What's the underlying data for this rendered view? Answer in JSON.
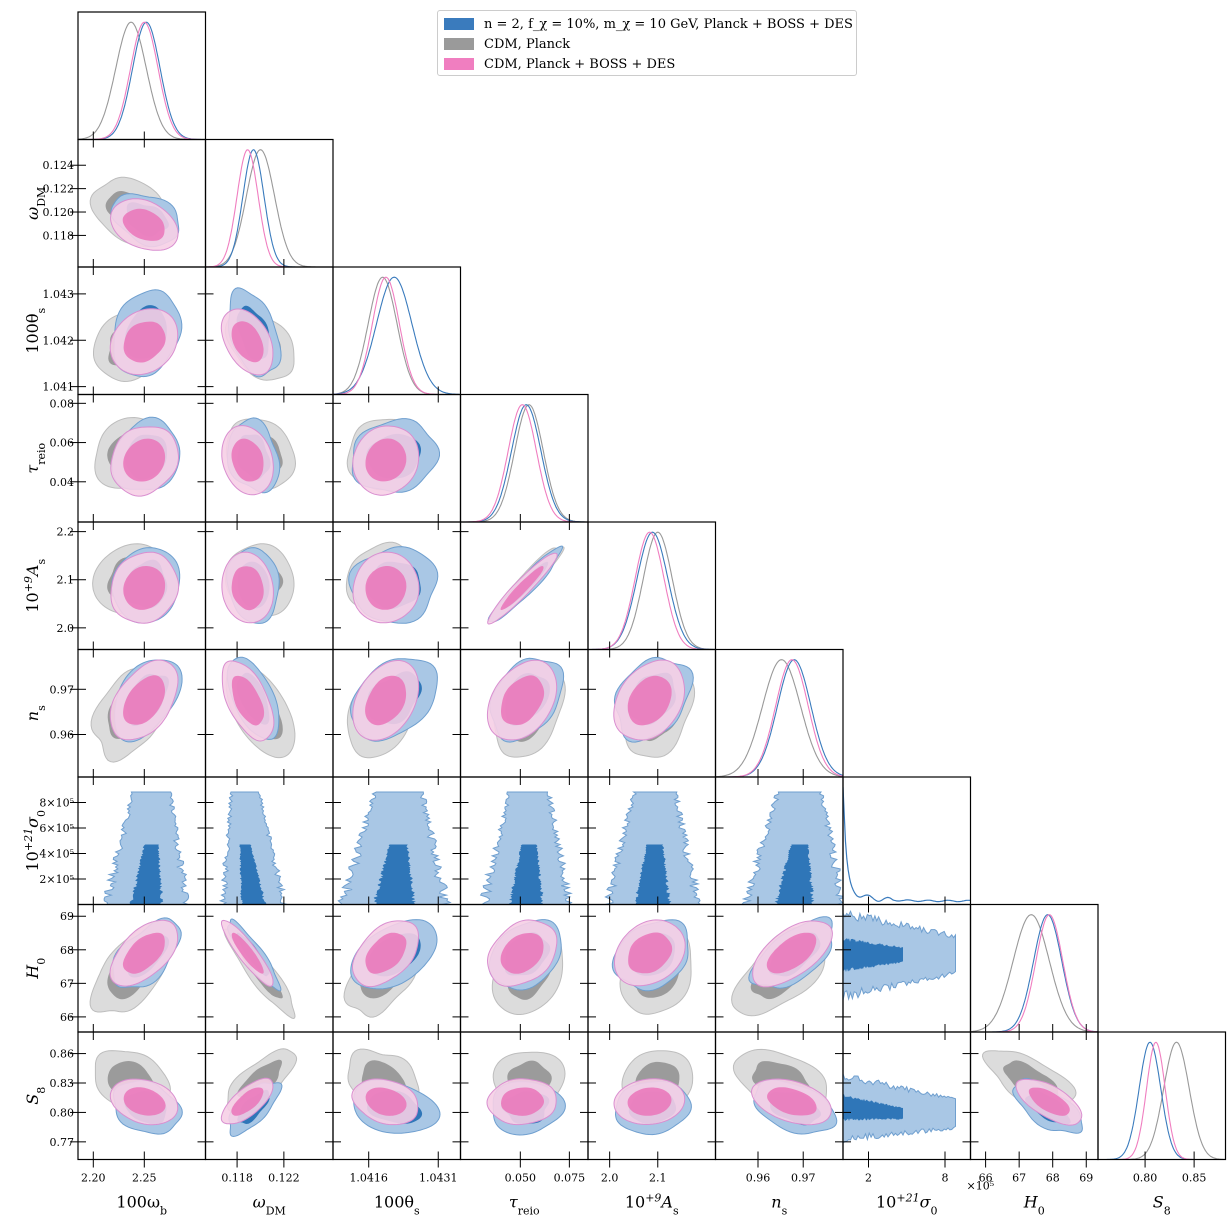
{
  "chart_data": {
    "type": "corner",
    "parameters": [
      {
        "key": "omega_b",
        "label": "100ω",
        "sub": "b",
        "sup": "",
        "ticks": [
          2.2,
          2.25
        ],
        "tick_labels": [
          "2.20",
          "2.25"
        ],
        "range": [
          2.185,
          2.31
        ]
      },
      {
        "key": "omega_dm",
        "label": "ω",
        "sub": "DM",
        "sup": "",
        "ticks": [
          0.118,
          0.122
        ],
        "tick_labels": [
          "0.118",
          "0.122"
        ],
        "range": [
          0.1153,
          0.1262
        ]
      },
      {
        "key": "theta_s",
        "label": "100θ",
        "sub": "s",
        "sup": "",
        "ticks": [
          1.0416,
          1.0431
        ],
        "tick_labels": [
          "1.0416",
          "1.0431"
        ],
        "range": [
          1.04083,
          1.04358
        ]
      },
      {
        "key": "tau_reio",
        "label": "τ",
        "sub": "reio",
        "sup": "",
        "ticks": [
          0.05,
          0.075
        ],
        "tick_labels": [
          "0.050",
          "0.075"
        ],
        "range": [
          0.0195,
          0.0845
        ]
      },
      {
        "key": "As",
        "label": "10",
        "sub": "s",
        "sup": "+9",
        "tail": "A",
        "ticks": [
          2.0,
          2.1
        ],
        "tick_labels": [
          "2.0",
          "2.1"
        ],
        "range": [
          1.955,
          2.22
        ]
      },
      {
        "key": "ns",
        "label": "n",
        "sub": "s",
        "sup": "",
        "ticks": [
          0.96,
          0.97
        ],
        "tick_labels": [
          "0.96",
          "0.97"
        ],
        "range": [
          0.9506,
          0.9788
        ]
      },
      {
        "key": "sigma0",
        "label": "10",
        "sub": "0",
        "sup": "+21",
        "tail": "σ",
        "ticks": [
          200000,
          800000
        ],
        "tick_labels": [
          "2",
          "8"
        ],
        "range": [
          0,
          1000000
        ],
        "offset": "×10⁵"
      },
      {
        "key": "H0",
        "label": "H",
        "sub": "0",
        "sup": "",
        "ticks": [
          66,
          67,
          68,
          69
        ],
        "tick_labels": [
          "66",
          "67",
          "68",
          "69"
        ],
        "range": [
          65.55,
          69.35
        ]
      },
      {
        "key": "S8",
        "label": "S",
        "sub": "8",
        "sup": "",
        "ticks": [
          0.8,
          0.85
        ],
        "tick_labels": [
          "0.80",
          "0.85"
        ],
        "range": [
          0.752,
          0.882
        ]
      }
    ],
    "y_ticks": {
      "omega_dm": {
        "ticks": [
          0.118,
          0.12,
          0.122,
          0.124
        ],
        "labels": [
          "0.118",
          "0.120",
          "0.122",
          "0.124"
        ]
      },
      "theta_s": {
        "ticks": [
          1.041,
          1.042,
          1.043
        ],
        "labels": [
          "1.041",
          "1.042",
          "1.043"
        ]
      },
      "tau_reio": {
        "ticks": [
          0.04,
          0.06,
          0.08
        ],
        "labels": [
          "0.04",
          "0.06",
          "0.08"
        ]
      },
      "As": {
        "ticks": [
          2.0,
          2.1,
          2.2
        ],
        "labels": [
          "2.0",
          "2.1",
          "2.2"
        ]
      },
      "ns": {
        "ticks": [
          0.96,
          0.97
        ],
        "labels": [
          "0.96",
          "0.97"
        ]
      },
      "sigma0": {
        "ticks": [
          200000,
          400000,
          600000,
          800000
        ],
        "labels": [
          "2×10⁵",
          "4×10⁵",
          "6×10⁵",
          "8×10⁵"
        ]
      },
      "H0": {
        "ticks": [
          66,
          67,
          68,
          69
        ],
        "labels": [
          "66",
          "67",
          "68",
          "69"
        ]
      },
      "S8": {
        "ticks": [
          0.77,
          0.8,
          0.83,
          0.86
        ],
        "labels": [
          "0.77",
          "0.80",
          "0.83",
          "0.86"
        ]
      }
    },
    "series": [
      {
        "name": "n = 2, f_χ = 10%, m_χ = 10 GeV, Planck + BOSS + DES",
        "color": "#3a7bbd",
        "mean": {
          "omega_b": 2.252,
          "omega_dm": 0.1194,
          "theta_s": 1.04215,
          "tau_reio": 0.053,
          "As": 2.089,
          "ns": 0.968,
          "sigma0": 150000,
          "H0": 67.85,
          "S8": 0.805
        },
        "sd": {
          "omega_b": 0.0135,
          "omega_dm": 0.0009,
          "theta_s": 0.00038,
          "tau_reio": 0.0075,
          "As": 0.032,
          "ns": 0.0037,
          "sigma0": 250000,
          "H0": 0.42,
          "S8": 0.011
        }
      },
      {
        "name": "CDM, Planck",
        "color": "#999999",
        "mean": {
          "omega_b": 2.237,
          "omega_dm": 0.12,
          "theta_s": 1.0419,
          "tau_reio": 0.0544,
          "As": 2.1,
          "ns": 0.9652,
          "H0": 67.36,
          "S8": 0.832
        },
        "sd": {
          "omega_b": 0.015,
          "omega_dm": 0.0012,
          "theta_s": 0.00031,
          "tau_reio": 0.0073,
          "As": 0.03,
          "ns": 0.0042,
          "H0": 0.54,
          "S8": 0.013
        }
      },
      {
        "name": "CDM, Planck + BOSS + DES",
        "color": "#f07ec0",
        "mean": {
          "omega_b": 2.25,
          "omega_dm": 0.1189,
          "theta_s": 1.04197,
          "tau_reio": 0.051,
          "As": 2.083,
          "ns": 0.9675,
          "H0": 67.9,
          "S8": 0.811
        },
        "sd": {
          "omega_b": 0.0135,
          "omega_dm": 0.0009,
          "theta_s": 0.00029,
          "tau_reio": 0.0072,
          "As": 0.03,
          "ns": 0.0036,
          "H0": 0.4,
          "S8": 0.0095
        }
      }
    ],
    "correlations": {
      "omega_dm|omega_b": -0.3,
      "theta_s|omega_b": 0.2,
      "theta_s|omega_dm": -0.4,
      "tau_reio|omega_b": 0.15,
      "tau_reio|omega_dm": -0.2,
      "tau_reio|theta_s": 0.1,
      "As|omega_b": 0.1,
      "As|omega_dm": -0.1,
      "As|theta_s": 0.05,
      "As|tau_reio": 0.95,
      "ns|omega_b": 0.45,
      "ns|omega_dm": -0.55,
      "ns|theta_s": 0.35,
      "ns|tau_reio": 0.35,
      "ns|As": 0.3,
      "H0|omega_b": 0.55,
      "H0|omega_dm": -0.9,
      "H0|theta_s": 0.45,
      "H0|tau_reio": 0.3,
      "H0|As": 0.25,
      "H0|ns": 0.6,
      "S8|omega_b": -0.25,
      "S8|omega_dm": 0.7,
      "S8|theta_s": -0.25,
      "S8|tau_reio": 0.05,
      "S8|As": 0.1,
      "S8|ns": -0.4,
      "S8|H0": -0.65
    },
    "legend": {
      "position": "top-center"
    }
  }
}
